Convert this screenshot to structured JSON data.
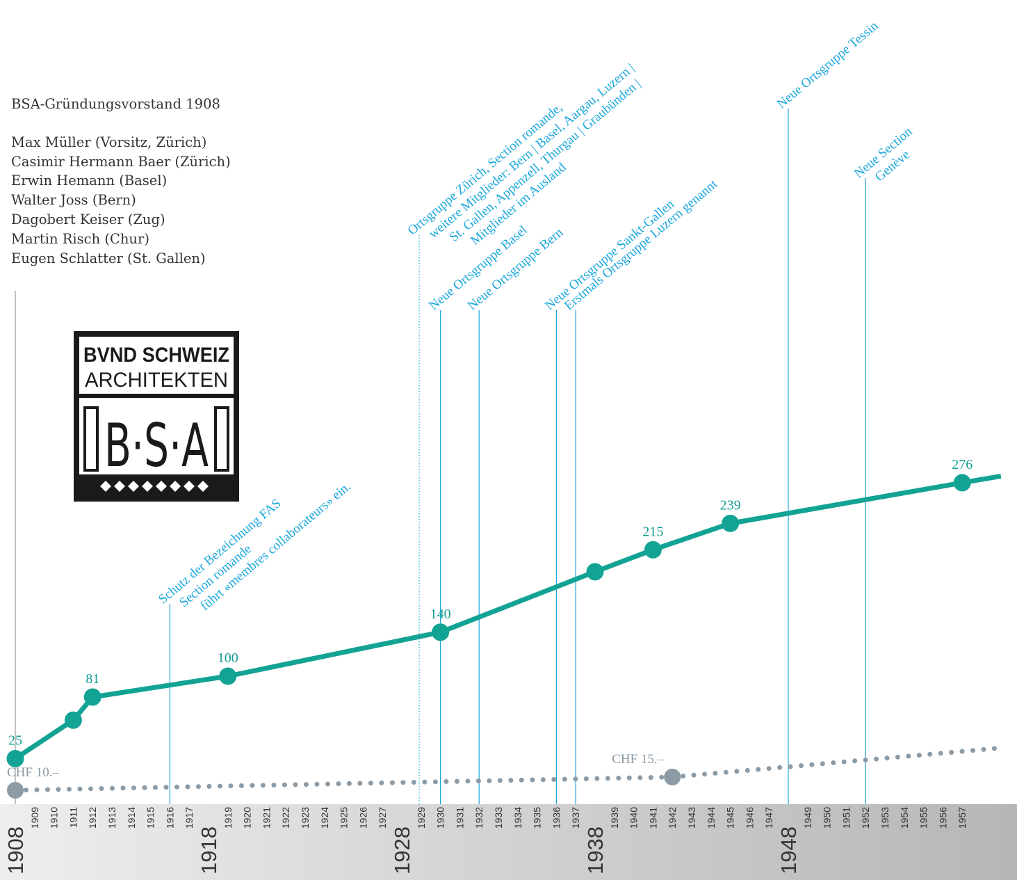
{
  "info": {
    "title": "BSA-Gründungsvorstand 1908",
    "members": [
      "Max Müller (Vorsitz, Zürich)",
      "Casimir Hermann Baer (Zürich)",
      "Erwin Hemann (Basel)",
      "Walter Joss (Bern)",
      "Dagobert Keiser (Zug)",
      "Martin Risch (Chur)",
      "Eugen Schlatter (St. Gallen)"
    ]
  },
  "logo": {
    "text_line1": "BVND SCHWEIZ",
    "text_line2": "ARCHITEKTEN",
    "monogram": "B·S·A"
  },
  "colors": {
    "members_line": "#13a394",
    "fee_line": "#8c9ba6",
    "annotation": "#1aa7dc",
    "axis_band_left": "#eeeeee",
    "axis_band_right": "#b4b6b8"
  },
  "chart_data": {
    "type": "line",
    "x_range": [
      1908,
      1958
    ],
    "year_ticks": [
      1909,
      1910,
      1911,
      1912,
      1913,
      1914,
      1915,
      1916,
      1917,
      1919,
      1920,
      1921,
      1922,
      1923,
      1924,
      1925,
      1926,
      1927,
      1929,
      1930,
      1931,
      1932,
      1933,
      1934,
      1935,
      1936,
      1937,
      1939,
      1940,
      1941,
      1942,
      1943,
      1944,
      1945,
      1946,
      1947,
      1949,
      1950,
      1951,
      1952,
      1953,
      1954,
      1955,
      1956,
      1957
    ],
    "decade_ticks": [
      1908,
      1918,
      1928,
      1938,
      1948
    ],
    "series": [
      {
        "key": "members",
        "points": [
          {
            "x": 1908,
            "y": 25,
            "label": "25"
          },
          {
            "x": 1911,
            "y": 60,
            "label": ""
          },
          {
            "x": 1912,
            "y": 81,
            "label": "81"
          },
          {
            "x": 1919,
            "y": 100,
            "label": "100"
          },
          {
            "x": 1930,
            "y": 140,
            "label": "140"
          },
          {
            "x": 1938,
            "y": 195,
            "label": ""
          },
          {
            "x": 1941,
            "y": 215,
            "label": "215"
          },
          {
            "x": 1945,
            "y": 239,
            "label": "239"
          },
          {
            "x": 1957,
            "y": 276,
            "label": "276"
          },
          {
            "x": 1959,
            "y": 282,
            "label": ""
          }
        ]
      },
      {
        "key": "fee",
        "points": [
          {
            "x": 1908,
            "y": 10,
            "label": "CHF 10.–"
          },
          {
            "x": 1942,
            "y": 15,
            "label": "CHF 15.–"
          },
          {
            "x": 1959,
            "y": 26,
            "label": ""
          }
        ]
      }
    ],
    "annotations": [
      {
        "x": 1908,
        "lines": [],
        "style": "solid",
        "color": "gray"
      },
      {
        "x": 1916,
        "lines": [
          "Schutz der Bezeichnung FAS",
          "Section romande",
          "führt «membres collaborateurs» ein."
        ],
        "style": "solid",
        "color": "blue"
      },
      {
        "x": 1928.9,
        "lines": [
          "Ortsgruppe Zürich, Section romande,",
          "weitere Mitglieder: Bern | Basel, Aargau, Luzern |",
          "St. Gallen, Appenzell, Thurgau | Graubünden |",
          "Mitglieder im Ausland"
        ],
        "style": "dotted",
        "color": "blue"
      },
      {
        "x": 1930,
        "lines": [
          "Neue Ortsgruppe Basel"
        ],
        "style": "solid",
        "color": "blue"
      },
      {
        "x": 1932,
        "lines": [
          "Neue Ortsgruppe Bern"
        ],
        "style": "solid",
        "color": "blue"
      },
      {
        "x": 1936,
        "lines": [
          "Neue Ortsgruppe Sankt-Gallen"
        ],
        "style": "solid",
        "color": "blue"
      },
      {
        "x": 1937,
        "lines": [
          "Erstmals Ortsgruppe Luzern genannt"
        ],
        "style": "solid",
        "color": "blue"
      },
      {
        "x": 1948,
        "lines": [
          "Neue Ortsgruppe Tessin"
        ],
        "style": "solid",
        "color": "blue"
      },
      {
        "x": 1952,
        "lines": [
          "Neue Section",
          "Genève"
        ],
        "style": "solid",
        "color": "blue"
      }
    ]
  }
}
